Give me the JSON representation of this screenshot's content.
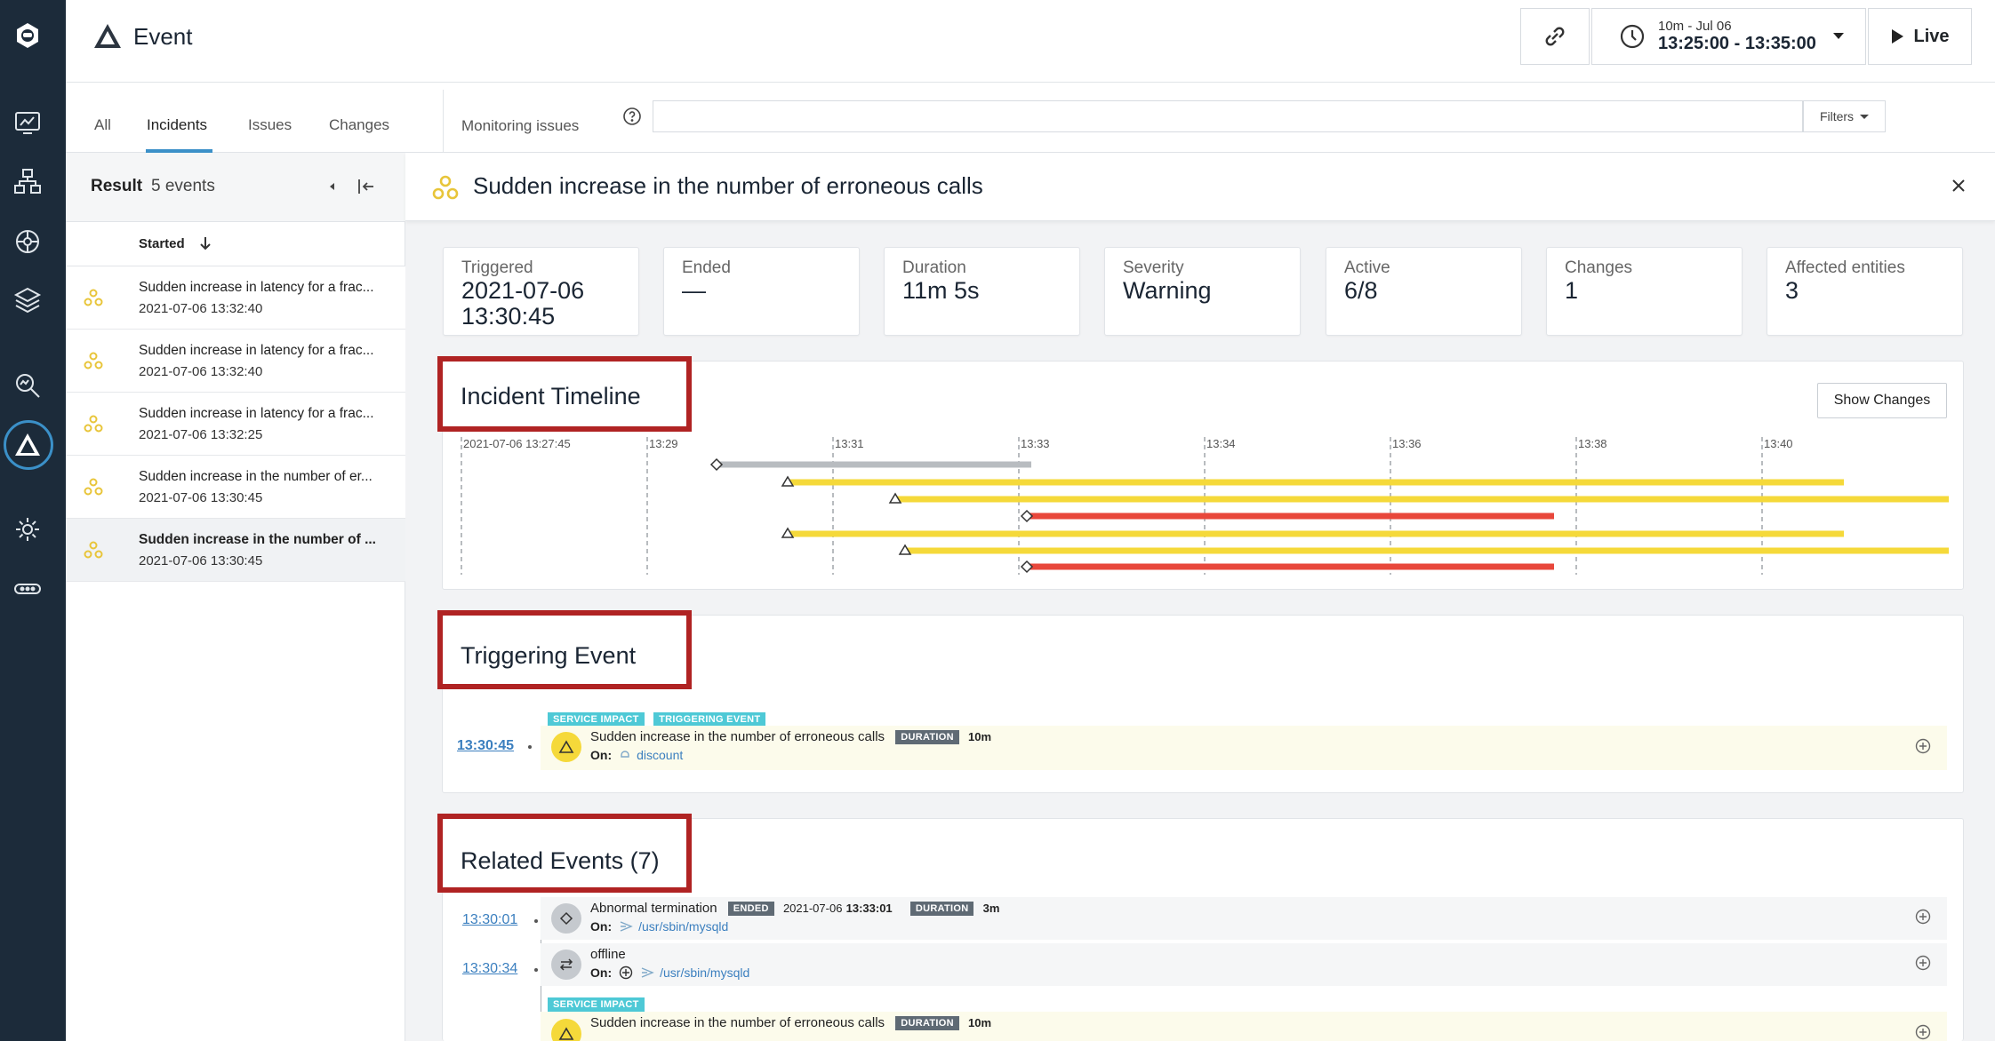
{
  "header": {
    "title": "Event",
    "time_range_small": "10m - Jul 06",
    "time_range": "13:25:00 - 13:35:00",
    "live_label": "Live"
  },
  "tabs": [
    {
      "label": "All"
    },
    {
      "label": "Incidents",
      "active": true
    },
    {
      "label": "Issues"
    },
    {
      "label": "Changes"
    }
  ],
  "search": {
    "label": "Monitoring issues",
    "value": "",
    "filters_label": "Filters"
  },
  "list": {
    "result_label": "Result",
    "result_count": "5 events",
    "sort_label": "Started",
    "items": [
      {
        "title": "Sudden increase in latency for a frac...",
        "date": "2021-07-06 13:32:40"
      },
      {
        "title": "Sudden increase in latency for a frac...",
        "date": "2021-07-06 13:32:40"
      },
      {
        "title": "Sudden increase in latency for a frac...",
        "date": "2021-07-06 13:32:25"
      },
      {
        "title": "Sudden increase in the number of er...",
        "date": "2021-07-06 13:30:45"
      },
      {
        "title": "Sudden increase in the number of ...",
        "date": "2021-07-06 13:30:45",
        "selected": true
      }
    ]
  },
  "incident": {
    "title": "Sudden increase in the number of erroneous calls",
    "stats": [
      {
        "label": "Triggered",
        "value": "2021-07-06 13:30:45"
      },
      {
        "label": "Ended",
        "value": "—"
      },
      {
        "label": "Duration",
        "value": "11m 5s"
      },
      {
        "label": "Severity",
        "value": "Warning"
      },
      {
        "label": "Active",
        "value": "6/8"
      },
      {
        "label": "Changes",
        "value": "1"
      },
      {
        "label": "Affected entities",
        "value": "3"
      }
    ]
  },
  "timeline": {
    "title": "Incident Timeline",
    "show_changes_label": "Show Changes",
    "ticks": [
      "2021-07-06 13:27:45",
      "13:29",
      "13:31",
      "13:33",
      "13:34",
      "13:36",
      "13:38",
      "13:40"
    ],
    "colors": {
      "issue": "#f5d93a",
      "change": "#e8473b",
      "offline": "#b8bcc0"
    }
  },
  "triggering": {
    "title": "Triggering Event",
    "time": "13:30:45",
    "badges": [
      "SERVICE IMPACT",
      "TRIGGERING EVENT"
    ],
    "name": "Sudden increase in the number of erroneous calls",
    "duration_badge": "DURATION",
    "duration": "10m",
    "on_label": "On:",
    "entity": "discount"
  },
  "related": {
    "title": "Related Events (7)",
    "events": [
      {
        "time": "13:30:01",
        "name": "Abnormal termination",
        "status_badge": "ENDED",
        "date": "2021-07-06",
        "end_time": "13:33:01",
        "duration_badge": "DURATION",
        "duration": "3m",
        "on_label": "On:",
        "entity": "/usr/sbin/mysqld"
      },
      {
        "time": "13:30:34",
        "name": "offline",
        "on_label": "On:",
        "entity": "/usr/sbin/mysqld"
      },
      {
        "badge": "SERVICE IMPACT",
        "name": "Sudden increase in the number of erroneous calls",
        "duration_badge": "DURATION",
        "duration": "10m"
      }
    ]
  }
}
